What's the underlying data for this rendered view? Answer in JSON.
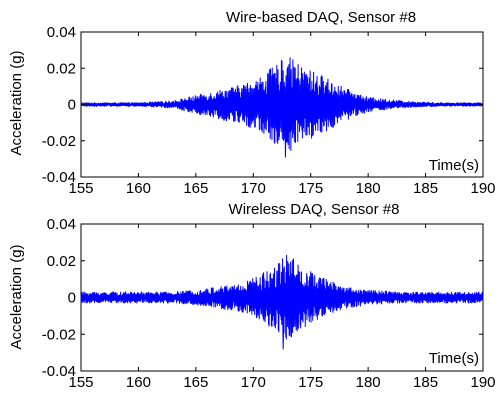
{
  "chart_data": [
    {
      "type": "line",
      "title": "Wire-based DAQ, Sensor #8",
      "xlabel": "Time(s)",
      "ylabel": "Acceleration (g)",
      "xlim": [
        155,
        190
      ],
      "ylim": [
        -0.04,
        0.04
      ],
      "xticks": [
        "155",
        "160",
        "165",
        "170",
        "175",
        "180",
        "185",
        "190"
      ],
      "yticks": [
        "0.04",
        "0.02",
        "0",
        "-0.02",
        "-0.04"
      ],
      "grid": false,
      "series": [
        {
          "color": "#0000ff",
          "envelope": {
            "t": [
              155,
              160,
              163,
              165,
              167,
              169,
              170.5,
              172,
              173,
              174,
              176,
              178,
              180,
              183,
              186,
              190
            ],
            "amp": [
              0.001,
              0.001,
              0.002,
              0.005,
              0.008,
              0.011,
              0.015,
              0.022,
              0.027,
              0.022,
              0.016,
              0.009,
              0.004,
              0.002,
              0.001,
              0.001
            ]
          },
          "peaks": [
            {
              "x": 172.8,
              "y": -0.029
            },
            {
              "x": 172.5,
              "y": 0.024
            },
            {
              "x": 173.1,
              "y": 0.022
            }
          ]
        }
      ]
    },
    {
      "type": "line",
      "title": "Wireless DAQ, Sensor #8",
      "xlabel": "Time(s)",
      "ylabel": "Acceleration (g)",
      "xlim": [
        155,
        190
      ],
      "ylim": [
        -0.04,
        0.04
      ],
      "xticks": [
        "155",
        "160",
        "165",
        "170",
        "175",
        "180",
        "185",
        "190"
      ],
      "yticks": [
        "0.04",
        "0.02",
        "0",
        "-0.02",
        "-0.04"
      ],
      "grid": false,
      "series": [
        {
          "color": "#0000ff",
          "envelope": {
            "t": [
              155,
              160,
              163,
              165,
              167,
              169,
              170.5,
              172,
              173,
              174,
              176,
              178,
              180,
              183,
              186,
              190
            ],
            "amp": [
              0.003,
              0.003,
              0.003,
              0.004,
              0.006,
              0.008,
              0.012,
              0.019,
              0.024,
              0.018,
              0.011,
              0.006,
              0.004,
              0.003,
              0.003,
              0.003
            ]
          },
          "peaks": [
            {
              "x": 172.6,
              "y": -0.028
            },
            {
              "x": 172.9,
              "y": 0.023
            },
            {
              "x": 173.2,
              "y": -0.021
            }
          ]
        }
      ]
    }
  ]
}
